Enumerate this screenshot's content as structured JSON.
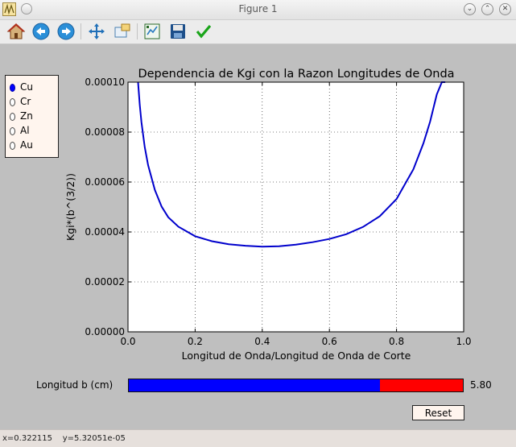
{
  "window": {
    "title": "Figure 1"
  },
  "toolbar": {
    "buttons": [
      {
        "name": "home-icon",
        "tooltip": "Reset original view"
      },
      {
        "name": "back-arrow-icon",
        "tooltip": "Back to previous view"
      },
      {
        "name": "forward-arrow-icon",
        "tooltip": "Forward to next view"
      },
      {
        "name": "pan-move-icon",
        "tooltip": "Pan axes"
      },
      {
        "name": "zoom-rect-icon",
        "tooltip": "Zoom to rectangle"
      },
      {
        "name": "subplots-config-icon",
        "tooltip": "Configure subplots"
      },
      {
        "name": "save-disk-icon",
        "tooltip": "Save the figure"
      },
      {
        "name": "edit-check-icon",
        "tooltip": "Edit parameters"
      }
    ]
  },
  "radio": {
    "options": [
      "Cu",
      "Cr",
      "Zn",
      "Al",
      "Au"
    ],
    "selected": "Cu"
  },
  "chart_data": {
    "type": "line",
    "title": "Dependencia de Kgi con la Razon Longitudes de Onda",
    "xlabel": "Longitud de Onda/Longitud de Onda de Corte",
    "ylabel": "Kgi*(b^(3/2))",
    "xlim": [
      0.0,
      1.0
    ],
    "ylim": [
      0.0,
      0.0001
    ],
    "xticks": [
      "0.0",
      "0.2",
      "0.4",
      "0.6",
      "0.8",
      "1.0"
    ],
    "yticks": [
      "0.00000",
      "0.00002",
      "0.00004",
      "0.00006",
      "0.00008",
      "0.00010"
    ],
    "grid": true,
    "series": [
      {
        "color": "#0000cc",
        "x": [
          0.03,
          0.035,
          0.04,
          0.05,
          0.06,
          0.08,
          0.1,
          0.12,
          0.15,
          0.2,
          0.25,
          0.3,
          0.35,
          0.4,
          0.45,
          0.5,
          0.55,
          0.6,
          0.65,
          0.7,
          0.75,
          0.8,
          0.85,
          0.88,
          0.9,
          0.92,
          0.935,
          0.945
        ],
        "y": [
          0.0001,
          9.1e-05,
          8.4e-05,
          7.4e-05,
          6.67e-05,
          5.68e-05,
          5.02e-05,
          4.59e-05,
          4.21e-05,
          3.83e-05,
          3.63e-05,
          3.51e-05,
          3.45e-05,
          3.41e-05,
          3.43e-05,
          3.49e-05,
          3.59e-05,
          3.72e-05,
          3.91e-05,
          4.2e-05,
          4.63e-05,
          5.32e-05,
          6.51e-05,
          7.55e-05,
          8.42e-05,
          9.51e-05,
          0.0001,
          0.0001
        ]
      }
    ]
  },
  "slider": {
    "label": "Longitud b (cm)",
    "value_text": "5.80",
    "fraction": 0.752
  },
  "reset": {
    "label": "Reset"
  },
  "status": {
    "text": "x=0.322115    y=5.32051e-05"
  }
}
